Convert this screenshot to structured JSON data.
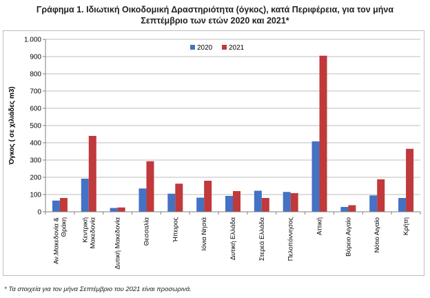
{
  "title_line1": "Γράφημα 1. Ιδιωτική Οικοδομική Δραστηριότητα (όγκος), κατά Περιφέρεια, για τον μήνα",
  "title_line2": "Σεπτέμβριο των ετών 2020 και 2021*",
  "footnote": "* Τα στοιχεία για τον μήνα Σεπτέμβριο του 2021 είναι προσωρινά.",
  "chart_data": {
    "type": "bar",
    "ylabel": "Όγκος ( σε χιλιάδες m3)",
    "xlabel": "",
    "ylim": [
      0,
      1000
    ],
    "yticks": [
      0,
      100,
      200,
      300,
      400,
      500,
      600,
      700,
      800,
      900,
      1000
    ],
    "ytick_labels": [
      "0",
      "100",
      "200",
      "300",
      "400",
      "500",
      "600",
      "700",
      "800",
      "900",
      "1.000"
    ],
    "grid": true,
    "legend_position": "top-right",
    "categories": [
      [
        "Αν.Μακεδονία &",
        "Θράκη"
      ],
      [
        "Κεντρική",
        "Μακεδονία"
      ],
      [
        "Δυτική Μακεδονία"
      ],
      [
        "Θεσσαλία"
      ],
      [
        "Ήπειρος"
      ],
      [
        "Ιόνια Νησιά"
      ],
      [
        "Δυτική Ελλάδα"
      ],
      [
        "Στερεά Ελλάδα"
      ],
      [
        "Πελοπόννησος"
      ],
      [
        "Αττική"
      ],
      [
        "Βόρειο Αιγαίο"
      ],
      [
        "Νότιο Αιγαίο"
      ],
      [
        "Κρήτη"
      ]
    ],
    "series": [
      {
        "name": "2020",
        "color": "#4472C4",
        "values": [
          65,
          192,
          22,
          135,
          105,
          82,
          92,
          122,
          115,
          408,
          28,
          95,
          80
        ]
      },
      {
        "name": "2021",
        "color": "#C0393B",
        "values": [
          80,
          440,
          25,
          293,
          163,
          180,
          120,
          80,
          108,
          905,
          38,
          188,
          365
        ]
      }
    ]
  }
}
